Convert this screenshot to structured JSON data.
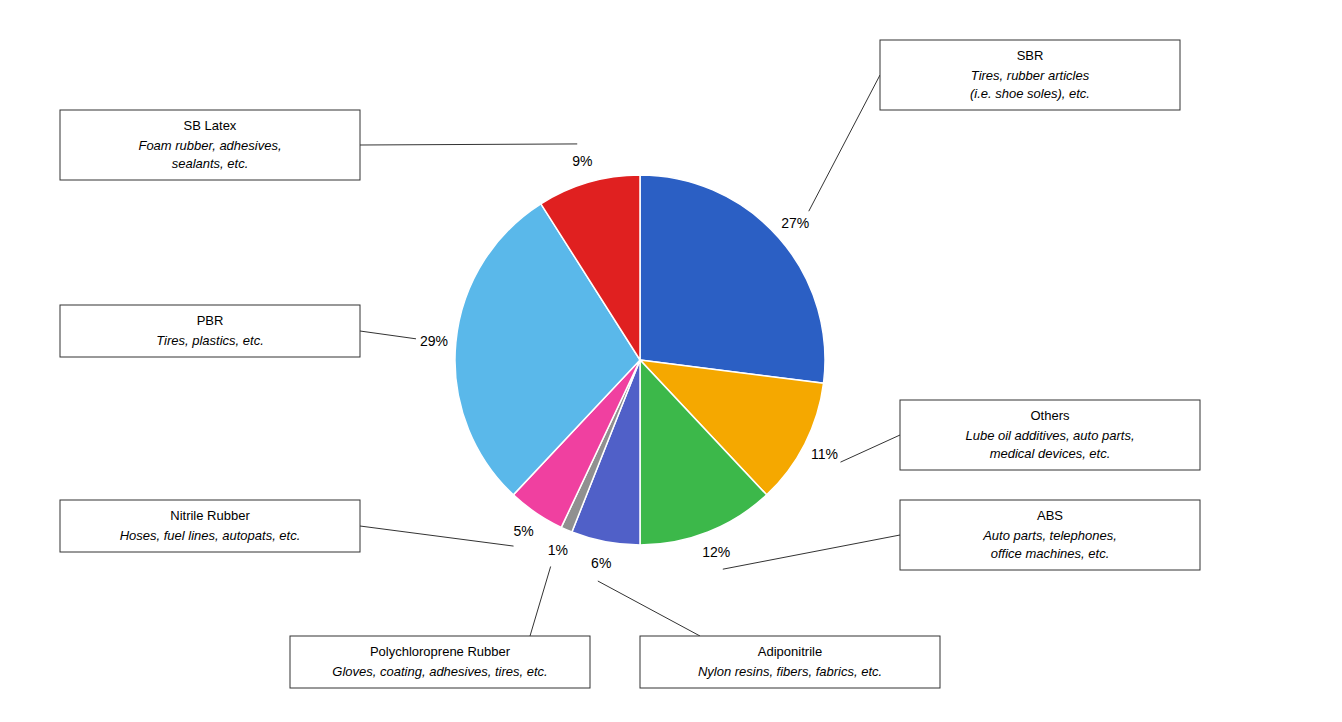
{
  "chart_data": {
    "type": "pie",
    "categories": [
      "SBR",
      "Others",
      "ABS",
      "Adiponitrile",
      "Polychloroprene Rubber",
      "Nitrile Rubber",
      "PBR",
      "SB Latex"
    ],
    "values": [
      27,
      11,
      12,
      6,
      1,
      5,
      29,
      9
    ],
    "value_labels": [
      "27%",
      "11%",
      "12%",
      "6%",
      "1%",
      "5%",
      "29%",
      "9%"
    ],
    "data_labels": true,
    "colors": [
      "#2B5FC4",
      "#F5A800",
      "#3CB84A",
      "#5060C8",
      "#909090",
      "#F040A0",
      "#5AB8EA",
      "#E02020"
    ],
    "annotations": [
      [
        "Tires, rubber articles",
        "(i.e. shoe soles), etc."
      ],
      [
        "Lube oil additives, auto parts,",
        "medical devices, etc."
      ],
      [
        "Auto parts, telephones,",
        "office machines, etc."
      ],
      [
        "Nylon resins, fibers, fabrics, etc."
      ],
      [
        "Gloves, coating, adhesives, tires, etc."
      ],
      [
        "Hoses, fuel lines, autopats, etc."
      ],
      [
        "Tires, plastics, etc."
      ],
      [
        "Foam rubber, adhesives,",
        "sealants, etc."
      ]
    ]
  }
}
